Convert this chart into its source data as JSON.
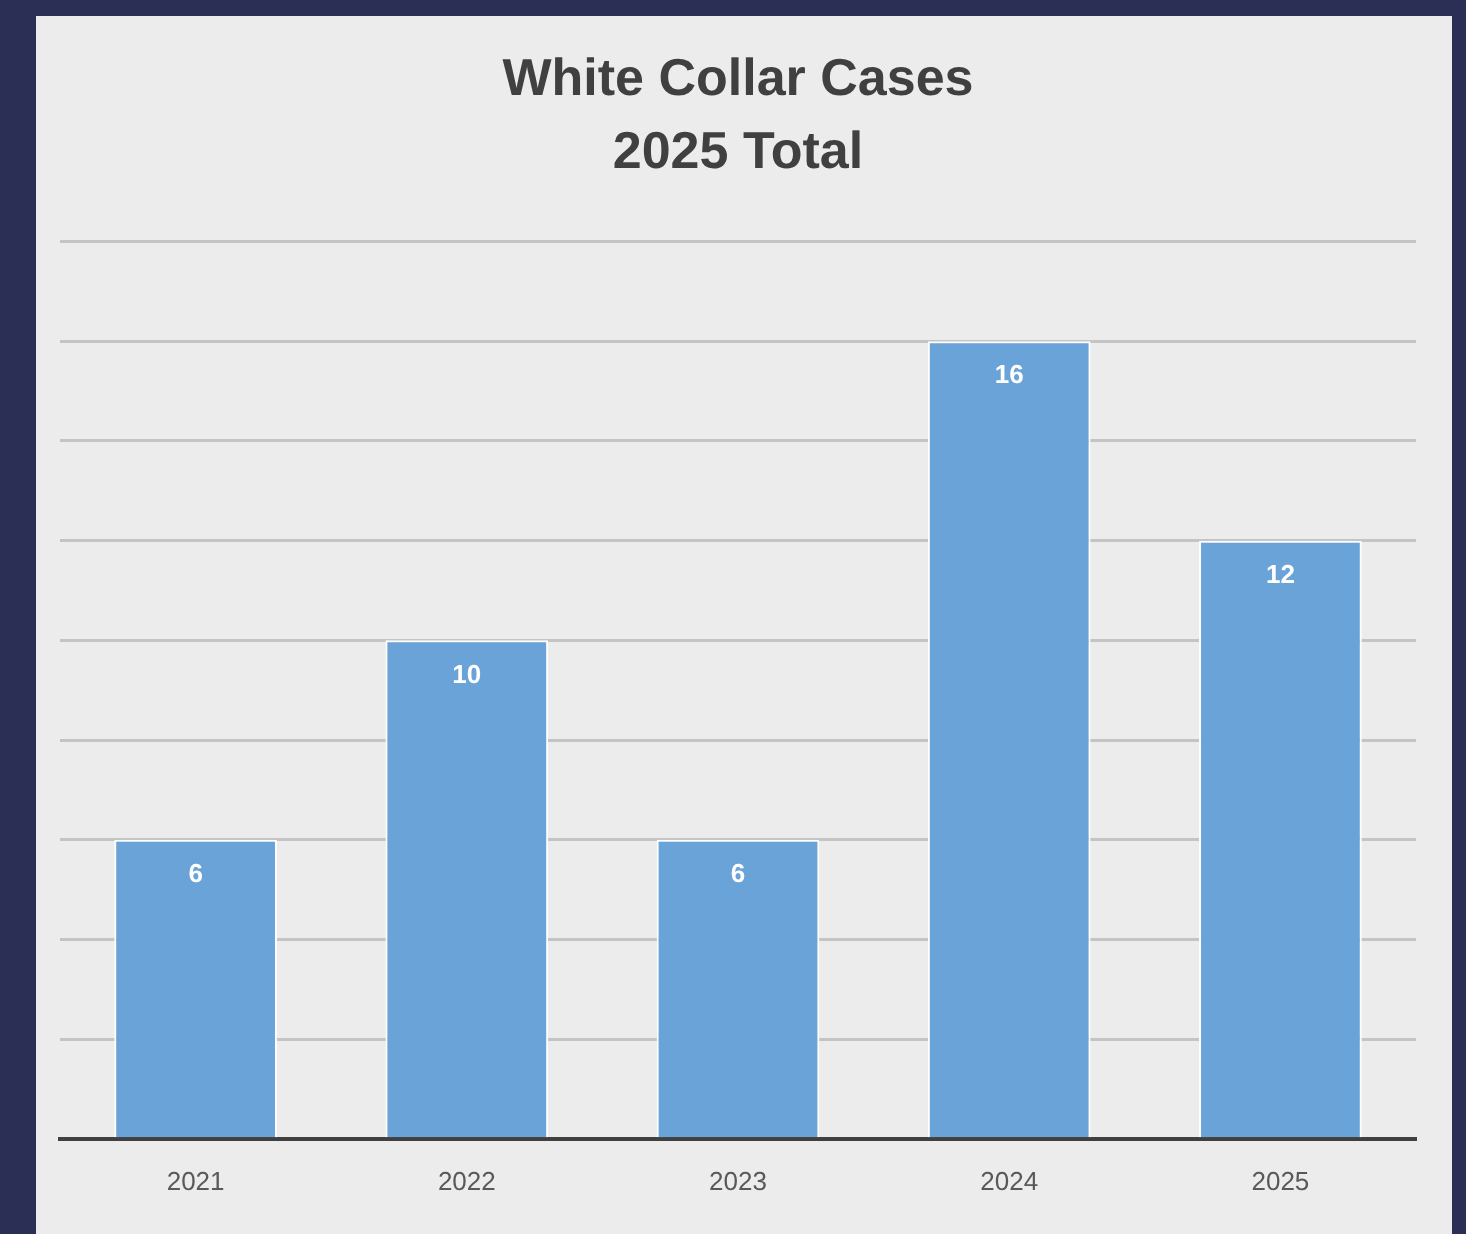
{
  "chart_data": {
    "type": "bar",
    "title": "White Collar Cases\n2025 Total",
    "categories": [
      "2021",
      "2022",
      "2023",
      "2024",
      "2025"
    ],
    "values": [
      6,
      10,
      6,
      16,
      12
    ],
    "color": "#6aa3d8",
    "ylim": [
      0,
      18
    ],
    "yticks": [
      {
        "value": 0,
        "label": null
      },
      {
        "value": 2,
        "label": null
      },
      {
        "value": 4,
        "label": null
      },
      {
        "value": 6,
        "label": null
      },
      {
        "value": 8,
        "label": null
      },
      {
        "value": 10,
        "label": null
      },
      {
        "value": 12,
        "label": null
      },
      {
        "value": 14,
        "label": null
      },
      {
        "value": 16,
        "label": null
      },
      {
        "value": 18,
        "label": null
      }
    ],
    "grid": "y",
    "tick_labels": "x",
    "data_labels": true
  }
}
